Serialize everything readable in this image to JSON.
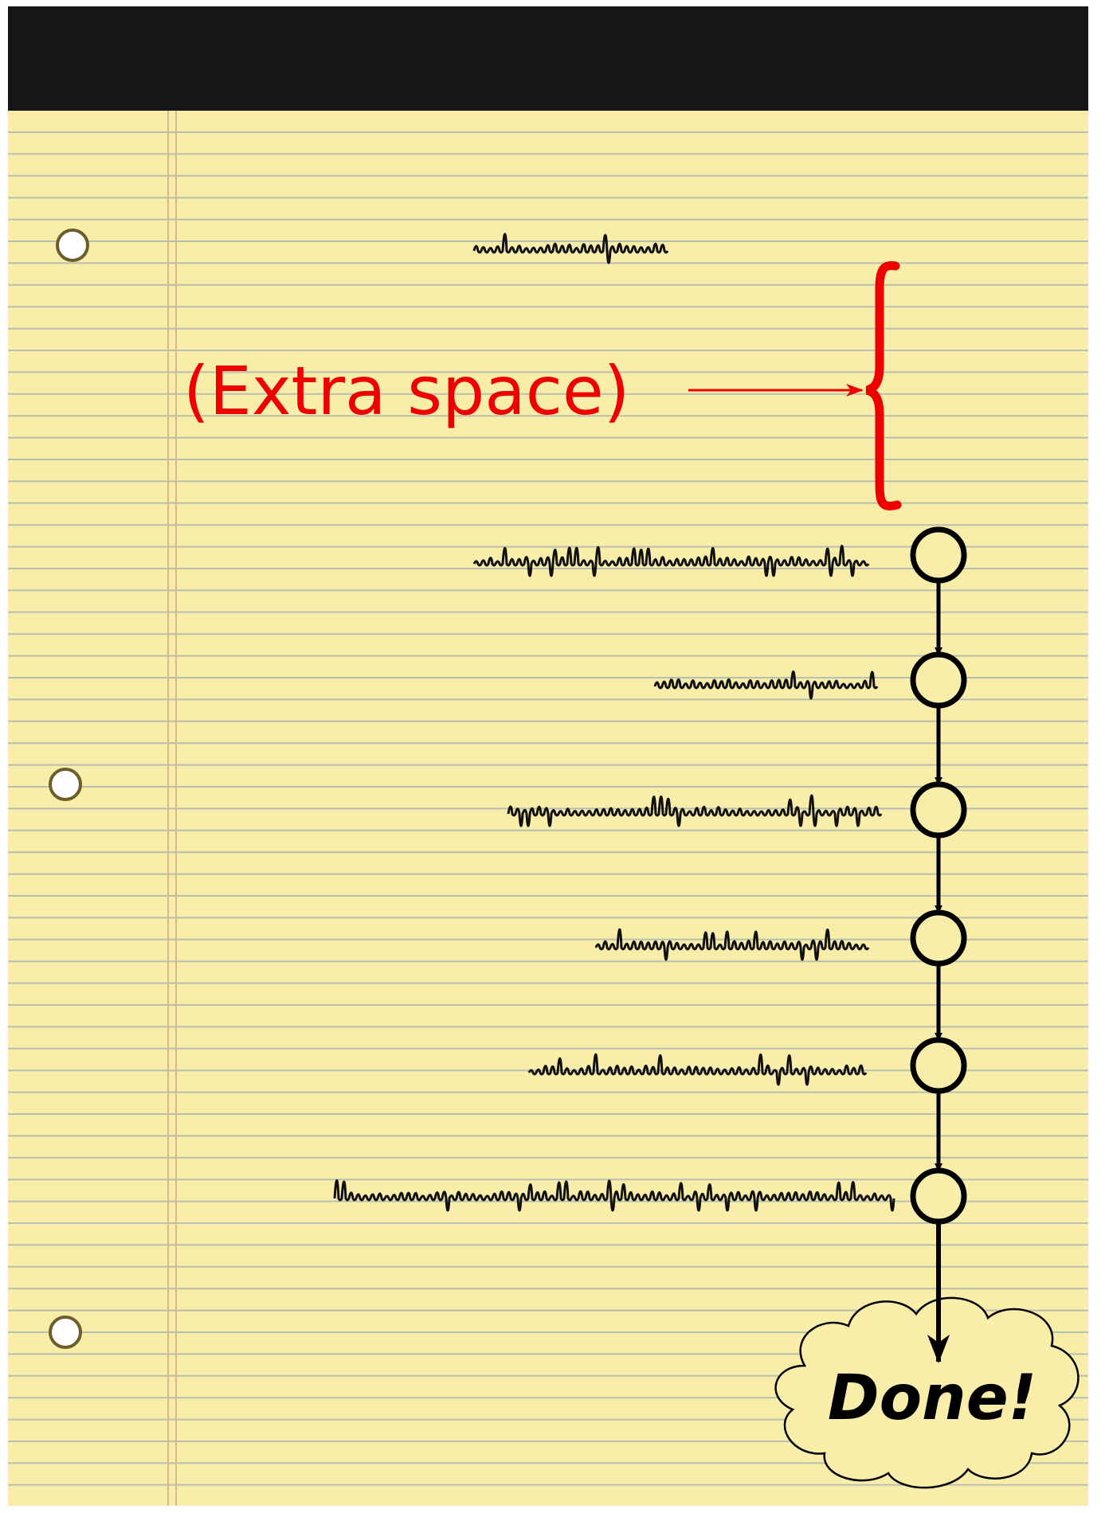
{
  "annotation": "(Extra space)",
  "end_label": "Done!"
}
